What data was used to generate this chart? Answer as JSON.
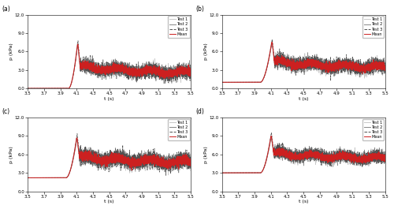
{
  "figsize_inches": [
    5.0,
    2.65
  ],
  "dpi": 100,
  "panels": [
    {
      "label": "a",
      "ylim": [
        0.0,
        12.0
      ],
      "yticks": [
        0.0,
        3.0,
        6.0,
        9.0,
        12.0
      ],
      "baseline": 0.0,
      "start_rise": 4.0,
      "peak_t": 4.11,
      "peak": 7.5,
      "post_mean": 2.3,
      "noise": 0.5
    },
    {
      "label": "b",
      "ylim": [
        0.0,
        12.0
      ],
      "yticks": [
        0.0,
        3.0,
        6.0,
        9.0,
        12.0
      ],
      "baseline": 1.0,
      "start_rise": 3.97,
      "peak_t": 4.11,
      "peak": 7.8,
      "post_mean": 3.2,
      "noise": 0.5
    },
    {
      "label": "c",
      "ylim": [
        0.0,
        12.0
      ],
      "yticks": [
        0.0,
        3.0,
        6.0,
        9.0,
        12.0
      ],
      "baseline": 2.2,
      "start_rise": 3.97,
      "peak_t": 4.1,
      "peak": 9.2,
      "post_mean": 4.5,
      "noise": 0.55
    },
    {
      "label": "d",
      "ylim": [
        0.0,
        12.0
      ],
      "yticks": [
        0.0,
        3.0,
        6.0,
        9.0,
        12.0
      ],
      "baseline": 3.0,
      "start_rise": 3.97,
      "peak_t": 4.1,
      "peak": 9.5,
      "post_mean": 5.2,
      "noise": 0.45
    }
  ],
  "xlim": [
    3.5,
    5.5
  ],
  "xticks": [
    3.5,
    3.7,
    3.9,
    4.1,
    4.3,
    4.5,
    4.7,
    4.9,
    5.1,
    5.3,
    5.5
  ],
  "xlabel": "t (s)",
  "ylabel": "p (kPa)",
  "color_test1": "#c8c8c8",
  "color_test2": "#888888",
  "color_test3": "#505050",
  "color_mean": "#cc2020",
  "legend_labels": [
    "Test 1",
    "Test 2",
    "Test 3",
    "Mean"
  ],
  "panel_lw": 0.5,
  "mean_lw": 0.75
}
